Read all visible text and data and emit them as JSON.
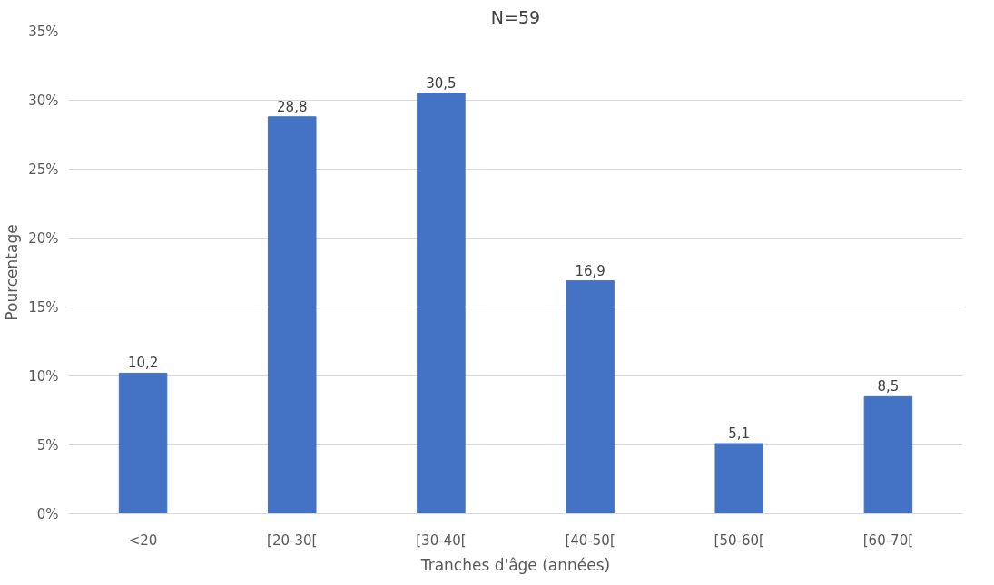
{
  "chart_data": {
    "type": "bar",
    "title": "N=59",
    "xlabel": "Tranches d'âge (années)",
    "ylabel": "Pourcentage",
    "categories": [
      "<20",
      "[20-30[",
      "[30-40[",
      "[40-50[",
      "[50-60[",
      "[60-70["
    ],
    "values": [
      10.2,
      28.8,
      30.5,
      16.9,
      5.1,
      8.5
    ],
    "value_labels": [
      "10,2",
      "28,8",
      "30,5",
      "16,9",
      "5,1",
      "8,5"
    ],
    "color": "#4472c4",
    "ylim": [
      0,
      35
    ],
    "yticks": [
      {
        "value": 0,
        "label": "0%"
      },
      {
        "value": 5,
        "label": "5%"
      },
      {
        "value": 10,
        "label": "10%"
      },
      {
        "value": 15,
        "label": "15%"
      },
      {
        "value": 20,
        "label": "20%"
      },
      {
        "value": 25,
        "label": "25%"
      },
      {
        "value": 30,
        "label": "30%"
      },
      {
        "value": 35,
        "label": "35%"
      }
    ],
    "grid": "y"
  }
}
